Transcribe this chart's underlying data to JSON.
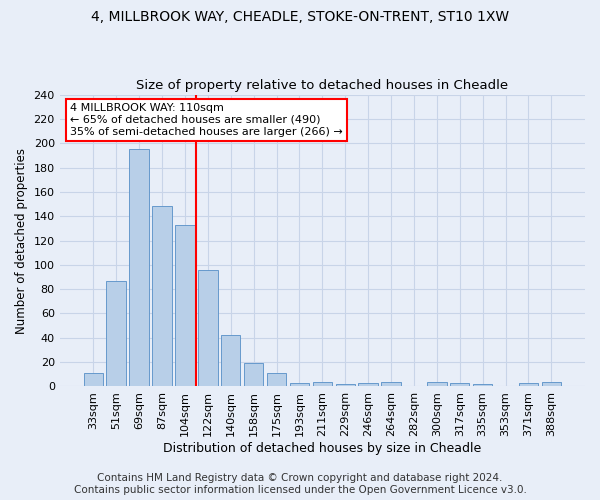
{
  "title1": "4, MILLBROOK WAY, CHEADLE, STOKE-ON-TRENT, ST10 1XW",
  "title2": "Size of property relative to detached houses in Cheadle",
  "xlabel": "Distribution of detached houses by size in Cheadle",
  "ylabel": "Number of detached properties",
  "footer1": "Contains HM Land Registry data © Crown copyright and database right 2024.",
  "footer2": "Contains public sector information licensed under the Open Government Licence v3.0.",
  "categories": [
    "33sqm",
    "51sqm",
    "69sqm",
    "87sqm",
    "104sqm",
    "122sqm",
    "140sqm",
    "158sqm",
    "175sqm",
    "193sqm",
    "211sqm",
    "229sqm",
    "246sqm",
    "264sqm",
    "282sqm",
    "300sqm",
    "317sqm",
    "335sqm",
    "353sqm",
    "371sqm",
    "388sqm"
  ],
  "values": [
    11,
    87,
    195,
    148,
    133,
    96,
    42,
    19,
    11,
    3,
    4,
    2,
    3,
    4,
    0,
    4,
    3,
    2,
    0,
    3,
    4
  ],
  "bar_color": "#b8cfe8",
  "bar_edge_color": "#6699cc",
  "bar_width": 0.85,
  "property_line_x": 4.5,
  "annotation_text": "4 MILLBROOK WAY: 110sqm\n← 65% of detached houses are smaller (490)\n35% of semi-detached houses are larger (266) →",
  "annotation_box_color": "white",
  "annotation_box_edge_color": "red",
  "vline_color": "red",
  "ylim": [
    0,
    240
  ],
  "yticks": [
    0,
    20,
    40,
    60,
    80,
    100,
    120,
    140,
    160,
    180,
    200,
    220,
    240
  ],
  "grid_color": "#c8d4e8",
  "bg_color": "#e8eef8",
  "title1_fontsize": 10,
  "title2_fontsize": 9.5,
  "xlabel_fontsize": 9,
  "ylabel_fontsize": 8.5,
  "tick_fontsize": 8,
  "annotation_fontsize": 8,
  "footer_fontsize": 7.5
}
